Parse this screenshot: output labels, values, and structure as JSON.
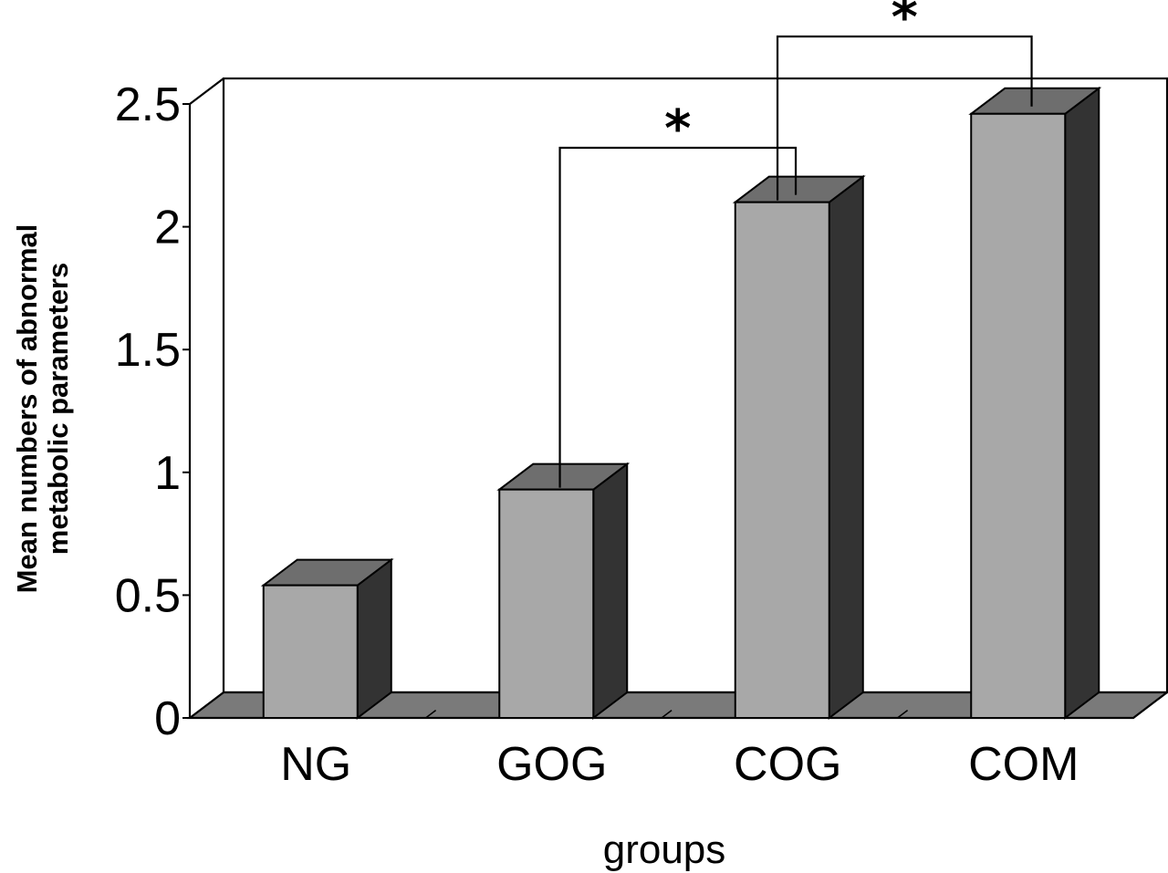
{
  "chart_data": {
    "type": "bar",
    "categories": [
      "NG",
      "GOG",
      "COG",
      "COM"
    ],
    "values": [
      0.54,
      0.93,
      2.1,
      2.46
    ],
    "xlabel": "groups",
    "ylabel_lines": [
      "Mean numbers of abnormal",
      "metabolic parameters"
    ],
    "ylim": [
      0,
      2.5
    ],
    "yticks": [
      "0",
      "0.5",
      "1",
      "1.5",
      "2",
      "2.5"
    ],
    "grid": false,
    "style": "3d-bar",
    "significance": [
      {
        "from": "GOG",
        "to": "COG",
        "label": "*"
      },
      {
        "from": "COG",
        "to": "COM",
        "label": "*"
      }
    ],
    "colors": {
      "bar_front": "#a8a8a8",
      "bar_top": "#6e6e6e",
      "bar_side": "#333333",
      "floor": "#7a7a7a"
    }
  }
}
